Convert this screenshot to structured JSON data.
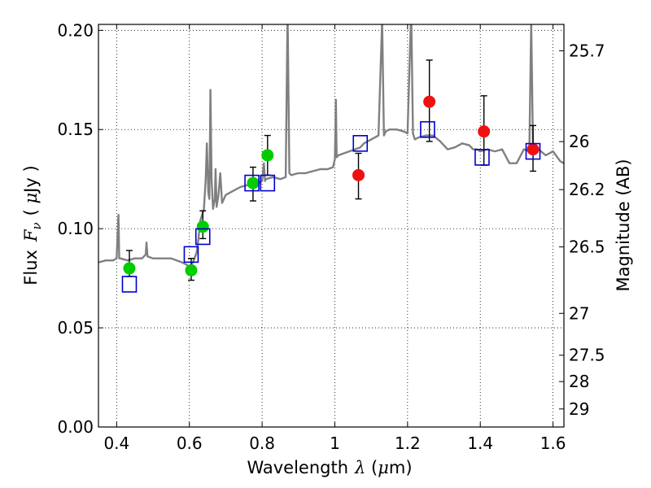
{
  "chart_data": {
    "type": "scatter",
    "title": "",
    "xlabel": "Wavelength",
    "xlabel_symbol": "λ",
    "xlabel_unit_open": " (",
    "xlabel_unit_mu": "μ",
    "xlabel_unit_rest": "m)",
    "ylabel": "Flux",
    "ylabel_symbol": "F",
    "ylabel_subscript": "ν",
    "ylabel_unit_open": "( ",
    "ylabel_unit_mu": "μ",
    "ylabel_unit_rest": "Jy )",
    "y2label": "Magnitude (AB)",
    "xlim": [
      0.35,
      1.63
    ],
    "ylim": [
      0.0,
      0.203
    ],
    "grid": true,
    "grid_style": "dotted",
    "legend": "none",
    "xticks": [
      {
        "value": 0.4,
        "label": "0.4"
      },
      {
        "value": 0.6,
        "label": "0.6"
      },
      {
        "value": 0.8,
        "label": "0.8"
      },
      {
        "value": 1.0,
        "label": "1"
      },
      {
        "value": 1.2,
        "label": "1.2"
      },
      {
        "value": 1.4,
        "label": "1.4"
      },
      {
        "value": 1.6,
        "label": "1.6"
      }
    ],
    "yticks": [
      {
        "value": 0.0,
        "label": "0.00"
      },
      {
        "value": 0.05,
        "label": "0.05"
      },
      {
        "value": 0.1,
        "label": "0.10"
      },
      {
        "value": 0.15,
        "label": "0.15"
      },
      {
        "value": 0.2,
        "label": "0.20"
      }
    ],
    "y2ticks": [
      {
        "label": "25.7",
        "flux_value": 0.1897
      },
      {
        "label": "26",
        "flux_value": 0.1439
      },
      {
        "label": "26.2",
        "flux_value": 0.1197
      },
      {
        "label": "26.5",
        "flux_value": 0.0908
      },
      {
        "label": "27",
        "flux_value": 0.0573
      },
      {
        "label": "27.5",
        "flux_value": 0.0362
      },
      {
        "label": "28",
        "flux_value": 0.0229
      },
      {
        "label": "29",
        "flux_value": 0.0091
      }
    ],
    "colors": {
      "model": "#808080",
      "green": "#00cc00",
      "red": "#ee1111",
      "box": "#0000cc",
      "errorbar": "#000000"
    },
    "series": [
      {
        "kind": "line",
        "role": "model spectrum",
        "x": [
          0.35,
          0.37,
          0.39,
          0.4,
          0.405,
          0.407,
          0.41,
          0.43,
          0.45,
          0.47,
          0.48,
          0.482,
          0.485,
          0.5,
          0.52,
          0.55,
          0.58,
          0.6,
          0.61,
          0.62,
          0.625,
          0.63,
          0.64,
          0.645,
          0.648,
          0.652,
          0.655,
          0.658,
          0.661,
          0.665,
          0.67,
          0.672,
          0.675,
          0.68,
          0.685,
          0.69,
          0.7,
          0.72,
          0.74,
          0.76,
          0.78,
          0.8,
          0.805,
          0.808,
          0.81,
          0.83,
          0.85,
          0.865,
          0.87,
          0.875,
          0.88,
          0.9,
          0.92,
          0.94,
          0.96,
          0.98,
          0.995,
          1.0,
          1.003,
          1.005,
          1.01,
          1.04,
          1.07,
          1.08,
          1.1,
          1.12,
          1.13,
          1.135,
          1.14,
          1.15,
          1.17,
          1.19,
          1.2,
          1.21,
          1.215,
          1.22,
          1.23,
          1.25,
          1.27,
          1.29,
          1.31,
          1.33,
          1.35,
          1.37,
          1.38,
          1.39,
          1.4,
          1.42,
          1.44,
          1.46,
          1.48,
          1.5,
          1.52,
          1.535,
          1.54,
          1.545,
          1.55,
          1.56,
          1.58,
          1.6,
          1.62,
          1.63
        ],
        "y": [
          0.083,
          0.084,
          0.084,
          0.085,
          0.107,
          0.085,
          0.085,
          0.084,
          0.085,
          0.085,
          0.087,
          0.093,
          0.086,
          0.085,
          0.085,
          0.085,
          0.083,
          0.081,
          0.083,
          0.088,
          0.095,
          0.104,
          0.11,
          0.125,
          0.143,
          0.118,
          0.115,
          0.17,
          0.125,
          0.11,
          0.115,
          0.13,
          0.111,
          0.117,
          0.128,
          0.113,
          0.117,
          0.119,
          0.121,
          0.122,
          0.122,
          0.124,
          0.133,
          0.124,
          0.125,
          0.126,
          0.125,
          0.126,
          0.21,
          0.128,
          0.127,
          0.128,
          0.128,
          0.129,
          0.13,
          0.13,
          0.131,
          0.135,
          0.165,
          0.136,
          0.137,
          0.139,
          0.141,
          0.143,
          0.145,
          0.147,
          0.205,
          0.147,
          0.149,
          0.15,
          0.15,
          0.149,
          0.148,
          0.21,
          0.148,
          0.145,
          0.146,
          0.147,
          0.147,
          0.144,
          0.14,
          0.141,
          0.143,
          0.142,
          0.14,
          0.14,
          0.139,
          0.14,
          0.139,
          0.14,
          0.133,
          0.133,
          0.14,
          0.139,
          0.205,
          0.14,
          0.138,
          0.14,
          0.137,
          0.139,
          0.134,
          0.133
        ]
      },
      {
        "kind": "errorbar-points",
        "role": "green photometry",
        "marker": "circle",
        "color": "#00cc00",
        "x": [
          0.435,
          0.605,
          0.637,
          0.775,
          0.815
        ],
        "y": [
          0.08,
          0.079,
          0.101,
          0.123,
          0.137
        ],
        "yerr_low": [
          0.004,
          0.005,
          0.006,
          0.009,
          0.01
        ],
        "yerr_high": [
          0.009,
          0.006,
          0.008,
          0.008,
          0.01
        ]
      },
      {
        "kind": "errorbar-points",
        "role": "red photometry",
        "marker": "circle",
        "color": "#ee1111",
        "x": [
          1.065,
          1.26,
          1.41,
          1.545
        ],
        "y": [
          0.127,
          0.164,
          0.149,
          0.14
        ],
        "yerr_low": [
          0.012,
          0.02,
          0.017,
          0.011
        ],
        "yerr_high": [
          0.011,
          0.021,
          0.018,
          0.012
        ]
      },
      {
        "kind": "markers",
        "role": "model synthetic photometry",
        "marker": "square-open",
        "color": "#0000cc",
        "x": [
          0.435,
          0.605,
          0.637,
          0.772,
          0.815,
          1.07,
          1.255,
          1.405,
          1.545
        ],
        "y": [
          0.072,
          0.087,
          0.096,
          0.123,
          0.123,
          0.143,
          0.15,
          0.136,
          0.139
        ]
      }
    ]
  }
}
